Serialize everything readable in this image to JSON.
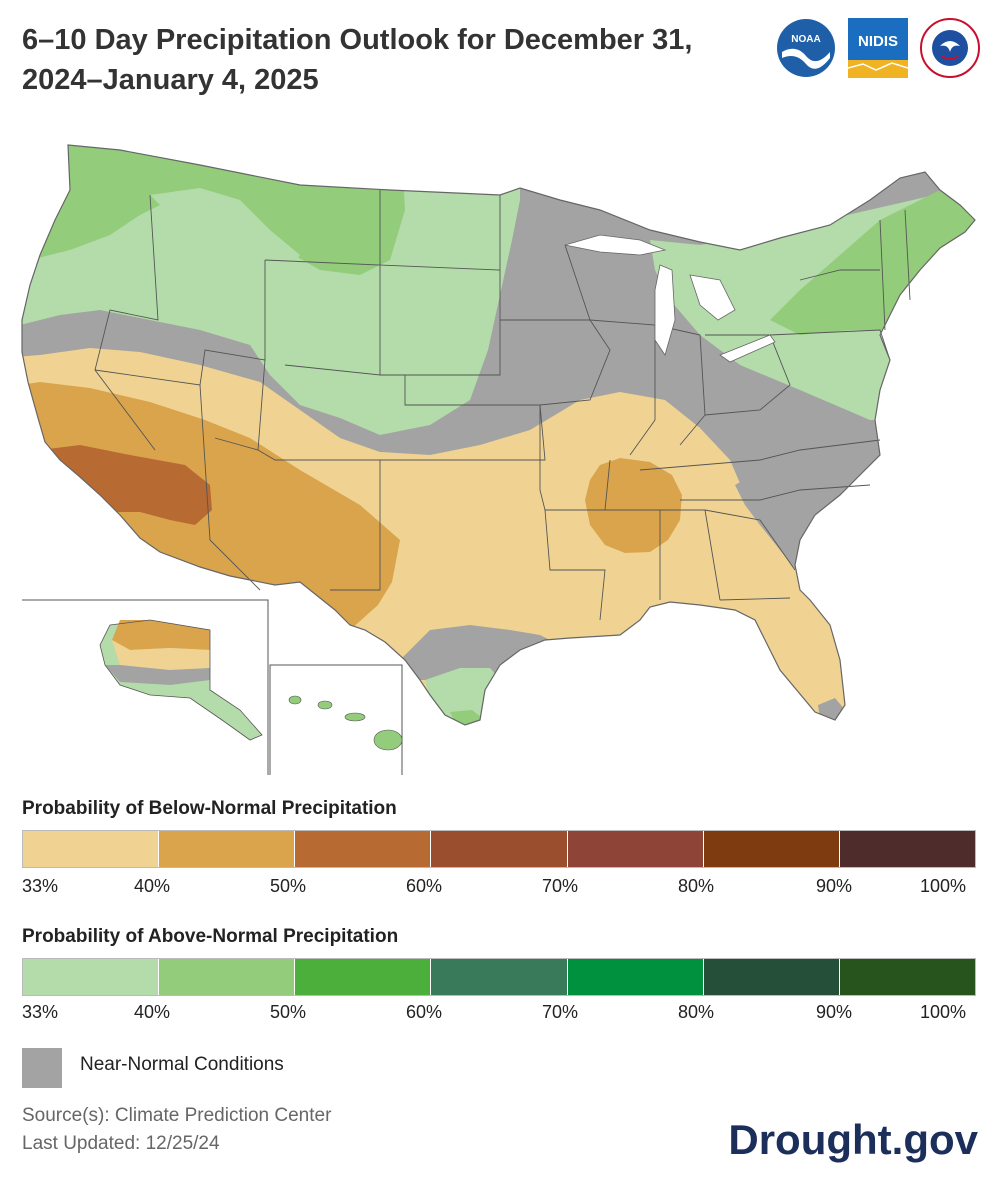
{
  "title": "6–10 Day Precipitation Outlook for December 31, 2024–January 4, 2025",
  "logos": [
    {
      "name": "noaa-logo",
      "text": "NOAA"
    },
    {
      "name": "nidis-logo",
      "text": "NIDIS"
    },
    {
      "name": "nws-logo",
      "text": "NATIONAL WEATHER SERVICE"
    }
  ],
  "colors": {
    "near_normal": "#a3a3a3",
    "below": [
      "#f0d392",
      "#d9a44c",
      "#b86a33",
      "#9b4e2e",
      "#8f4438",
      "#7d3b0f",
      "#4e2c2c"
    ],
    "above": [
      "#b4dcaa",
      "#93cc7b",
      "#4caf3c",
      "#397a5a",
      "#00913e",
      "#254f38",
      "#26541c"
    ]
  },
  "legend": {
    "below_title": "Probability of Below-Normal Precipitation",
    "above_title": "Probability of Above-Normal Precipitation",
    "ticks": [
      "33%",
      "40%",
      "50%",
      "60%",
      "70%",
      "80%",
      "90%",
      "100%"
    ],
    "near_normal_label": "Near-Normal Conditions"
  },
  "source": "Source(s): Climate Prediction Center",
  "last_updated": "Last Updated: 12/25/24",
  "brand": "Drought.gov"
}
